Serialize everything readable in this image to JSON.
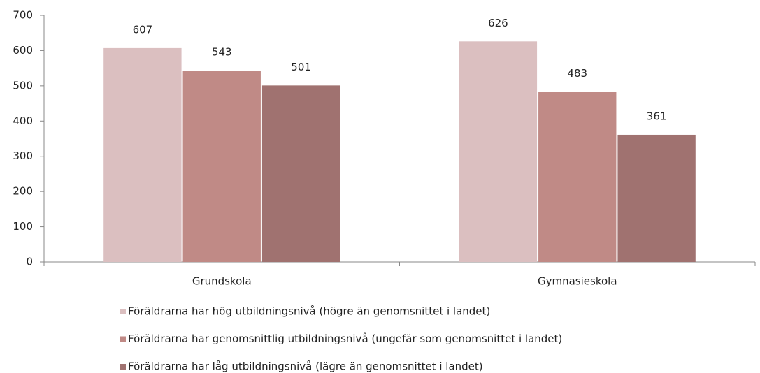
{
  "chart_data": {
    "type": "bar",
    "categories": [
      "Grundskola",
      "Gymnasieskola"
    ],
    "series": [
      {
        "name": "Föräldrarna har hög utbildningsnivå (högre än genomsnittet i landet)",
        "color": "#dbbfc0",
        "values": [
          607,
          626
        ]
      },
      {
        "name": "Föräldrarna har genomsnittlig utbildningsnivå (ungefär som genomsnittet i landet)",
        "color": "#c08a86",
        "values": [
          543,
          483
        ]
      },
      {
        "name": "Föräldrarna har låg utbildningsnivå (lägre än genomsnittet i landet)",
        "color": "#a07270",
        "values": [
          501,
          361
        ]
      }
    ],
    "ylim": [
      0,
      700
    ],
    "yticks": [
      0,
      100,
      200,
      300,
      400,
      500,
      600,
      700
    ],
    "grid": false,
    "legend": "bottom"
  }
}
